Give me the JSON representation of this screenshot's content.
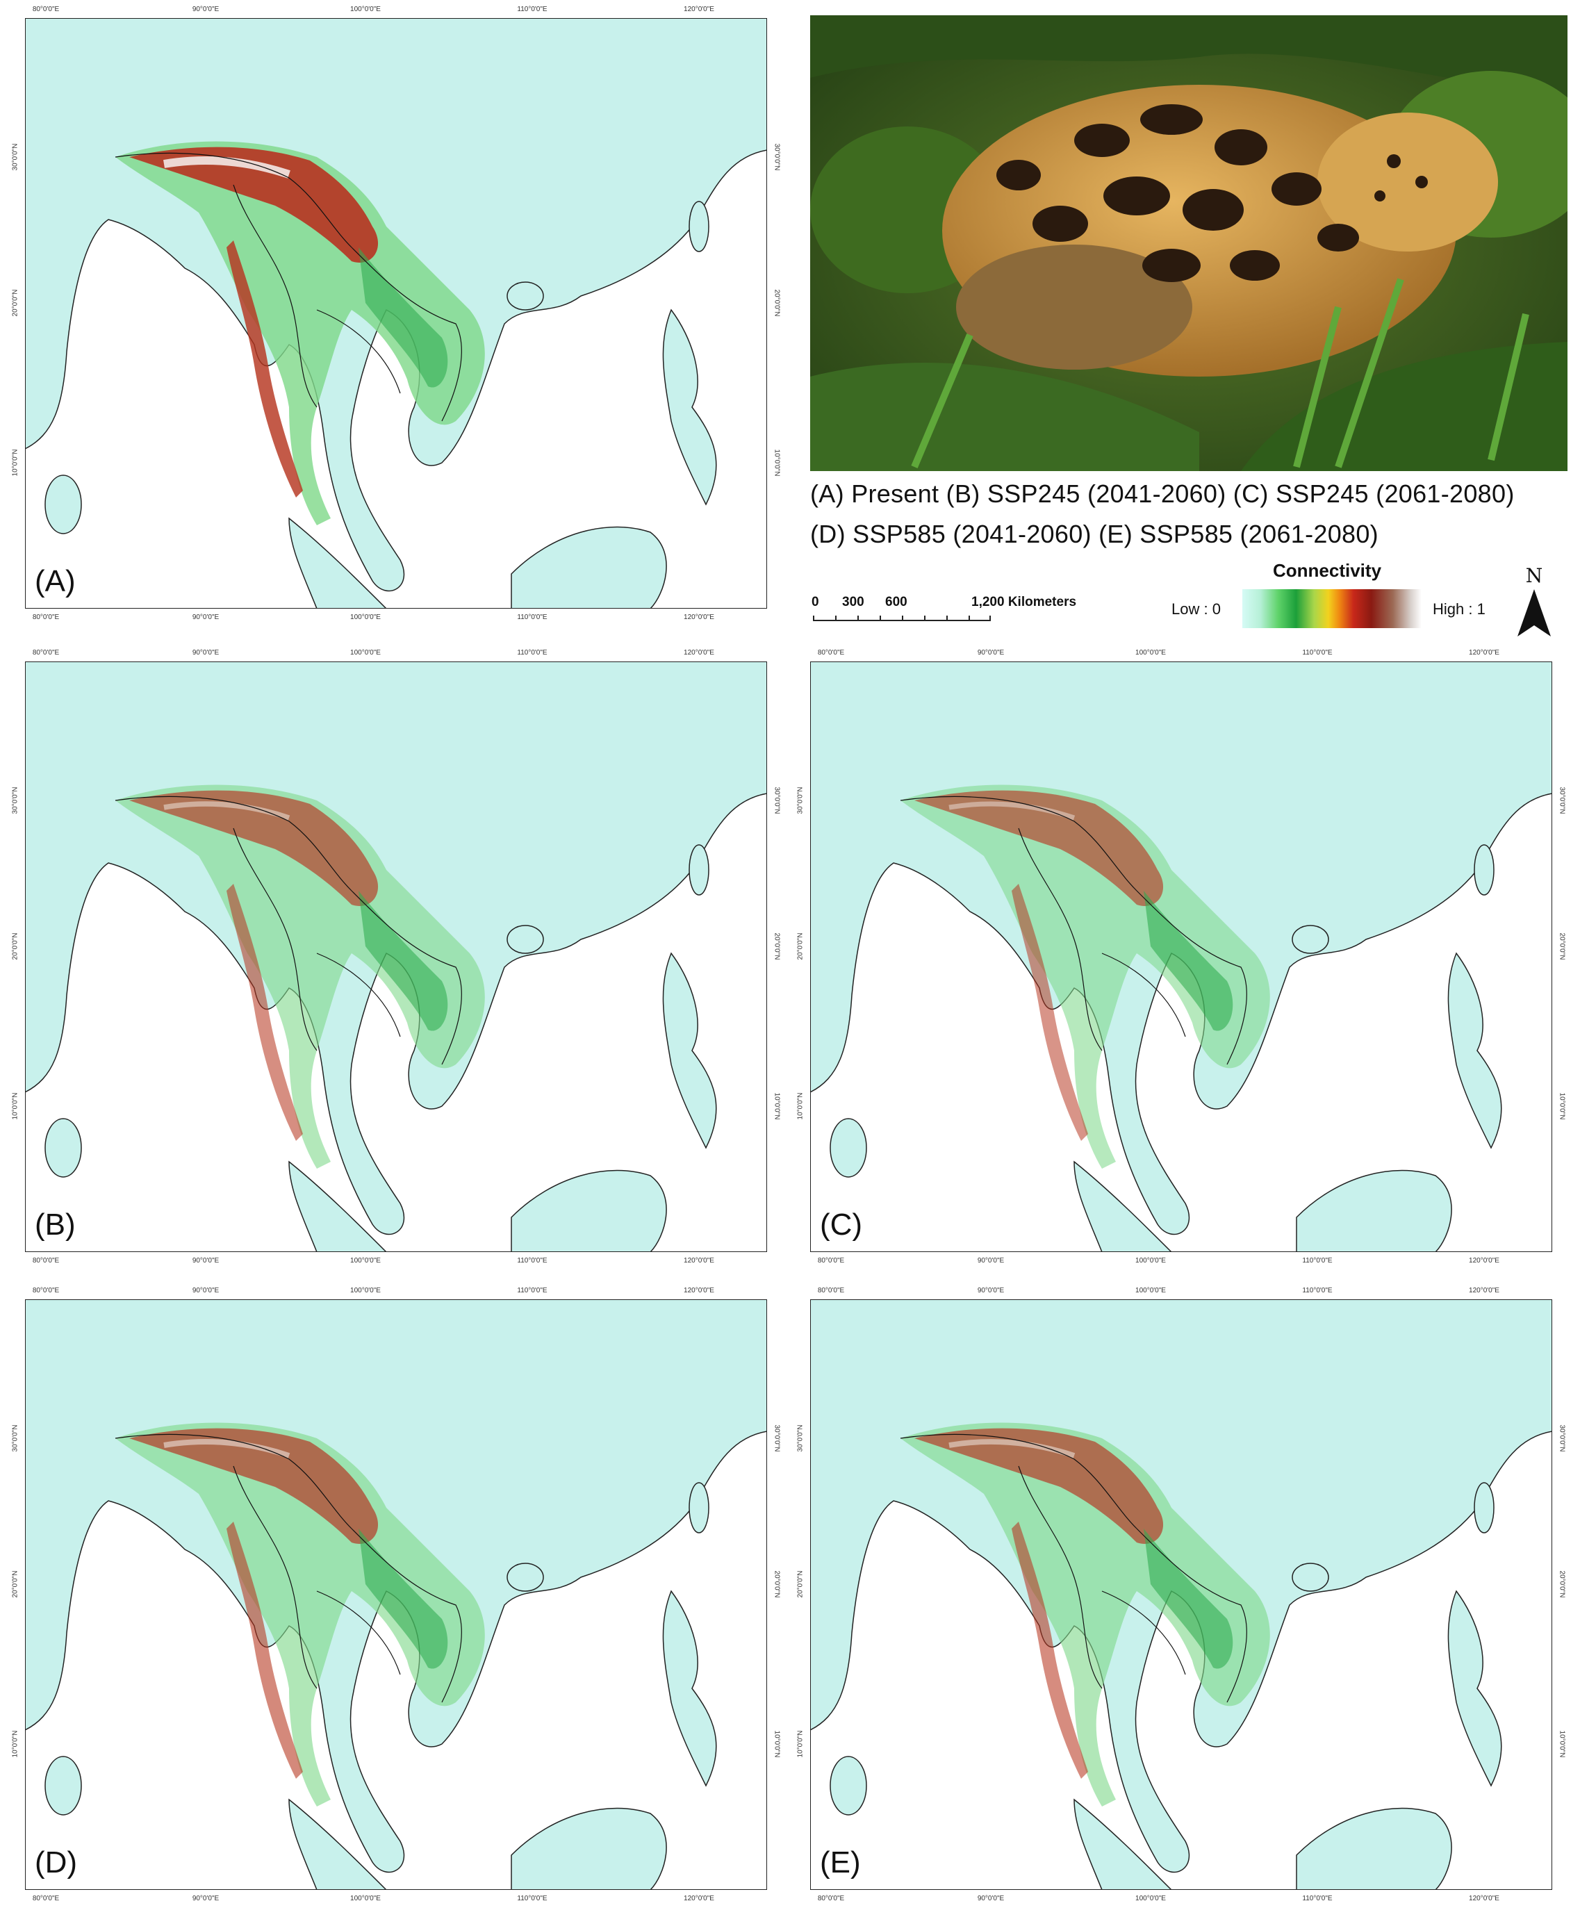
{
  "panels": [
    {
      "id": "A",
      "label": "(A)",
      "scenario": "present"
    },
    {
      "id": "B",
      "label": "(B)",
      "scenario": "ssp245_2041"
    },
    {
      "id": "C",
      "label": "(C)",
      "scenario": "ssp245_2061"
    },
    {
      "id": "D",
      "label": "(D)",
      "scenario": "ssp585_2041"
    },
    {
      "id": "E",
      "label": "(E)",
      "scenario": "ssp585_2061"
    }
  ],
  "graticule": {
    "longitudes": [
      "80°0'0\"E",
      "90°0'0\"E",
      "100°0'0\"E",
      "110°0'0\"E",
      "120°0'0\"E"
    ],
    "latitudes": [
      "30°0'0\"N",
      "20°0'0\"N",
      "10°0'0\"N"
    ]
  },
  "caption": {
    "line1": "(A) Present  (B) SSP245 (2041-2060)  (C) SSP245 (2061-2080)",
    "line2": "(D) SSP585 (2041-2060)  (E) SSP585 (2061-2080)"
  },
  "legend": {
    "title": "Connectivity",
    "low": "Low : 0",
    "high": "High : 1",
    "colors": [
      "#d6fbf6",
      "#5fd36a",
      "#1c9f3a",
      "#f2d21e",
      "#f08a12",
      "#c8281a",
      "#8a1a12",
      "#ffffff"
    ]
  },
  "scale_bar": {
    "labels": [
      "0",
      "300",
      "600",
      "1,200 Kilometers"
    ]
  },
  "north_arrow": {
    "letter": "N"
  },
  "photo": {
    "icon": "clouded-leopard-photo"
  },
  "colors": {
    "land": "#c8f1ec",
    "sea": "#ffffff",
    "high_connectivity": "#b5321c",
    "mid_connectivity": "#2aa84a"
  }
}
